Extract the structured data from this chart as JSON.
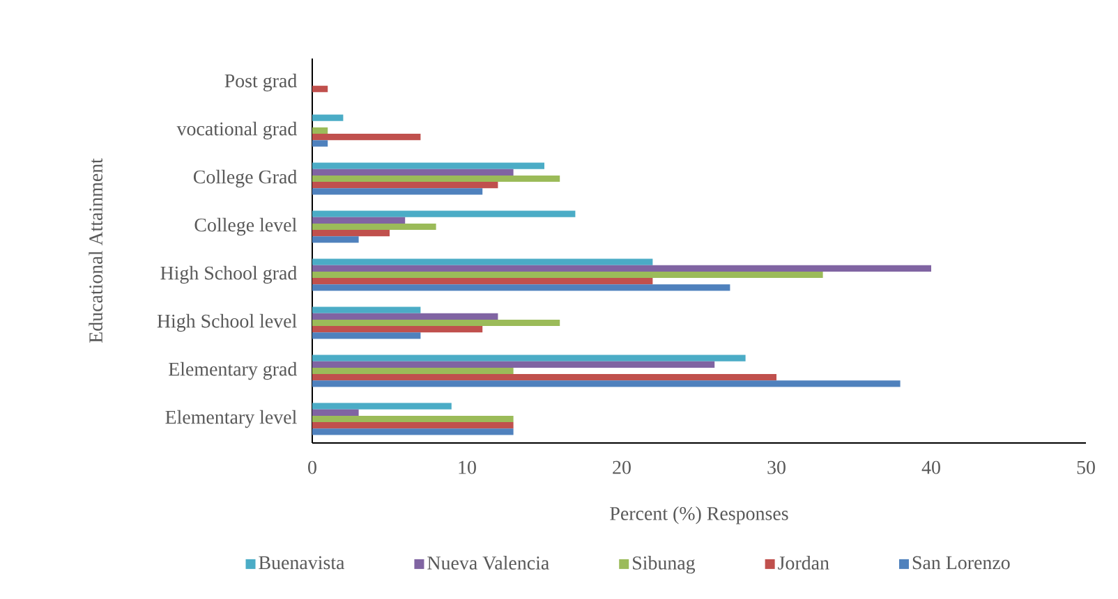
{
  "chart_data": {
    "type": "bar",
    "orientation": "horizontal",
    "xlabel": "Percent (%) Responses",
    "ylabel": "Educational Attainment",
    "categories": [
      "Post grad",
      "vocational grad",
      "College Grad",
      "College level",
      "High School grad",
      "High School level",
      "Elementary grad",
      "Elementary level"
    ],
    "series": [
      {
        "name": "Buenavista",
        "color": "#4bacc6",
        "values": [
          0,
          2,
          15,
          17,
          22,
          7,
          28,
          9
        ]
      },
      {
        "name": "Nueva Valencia",
        "color": "#8064a2",
        "values": [
          0,
          0,
          13,
          6,
          40,
          12,
          26,
          3
        ]
      },
      {
        "name": "Sibunag",
        "color": "#9bbb59",
        "values": [
          0,
          1,
          16,
          8,
          33,
          16,
          13,
          13
        ]
      },
      {
        "name": "Jordan",
        "color": "#c0504d",
        "values": [
          1,
          7,
          12,
          5,
          22,
          11,
          30,
          13
        ]
      },
      {
        "name": "San Lorenzo",
        "color": "#4f81bd",
        "values": [
          0,
          1,
          11,
          3,
          27,
          7,
          38,
          13
        ]
      }
    ],
    "xlim": [
      0,
      50
    ],
    "xticks": [
      0,
      10,
      20,
      30,
      40,
      50
    ],
    "legend": "bottom"
  }
}
